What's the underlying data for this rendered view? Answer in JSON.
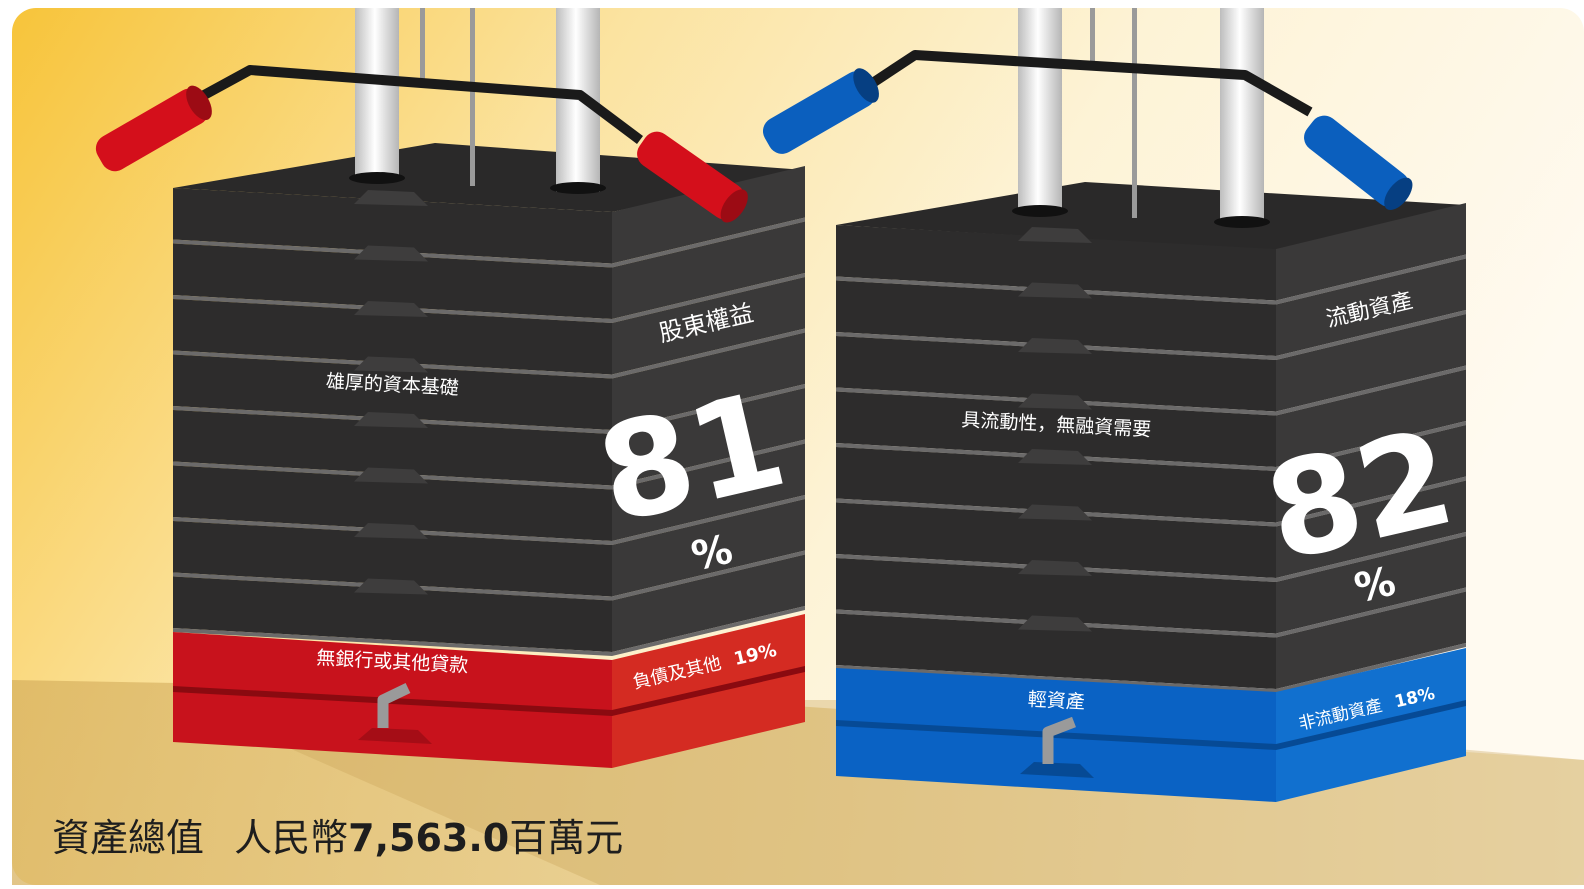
{
  "colors": {
    "background_top": "#fdf3d2",
    "background_left": "#f9c93c",
    "stack_black": "#2c2b2b",
    "stack_black_side": "#3a3939",
    "red": "#d0141f",
    "blue": "#0a5fc0",
    "rod": "#e9e9e9"
  },
  "left_stack": {
    "side_label": "股東權益",
    "big_number": "81",
    "percent_sign": "%",
    "front_label": "雄厚的資本基礎",
    "bottom_front_label": "無銀行或其他貸款",
    "bottom_side_label_text": "負債及其他",
    "bottom_side_label_pct": "19%",
    "share_black": 81,
    "share_colored": 19,
    "accent": "red"
  },
  "right_stack": {
    "side_label": "流動資產",
    "big_number": "82",
    "percent_sign": "%",
    "front_label": "具流動性，無融資需要",
    "bottom_front_label": "輕資產",
    "bottom_side_label_text": "非流動資產",
    "bottom_side_label_pct": "18%",
    "share_black": 82,
    "share_colored": 18,
    "accent": "blue"
  },
  "footer": {
    "total_label": "資產總值",
    "currency_label": "人民幣",
    "total_value": "7,563.0",
    "unit_label": "百萬元"
  }
}
